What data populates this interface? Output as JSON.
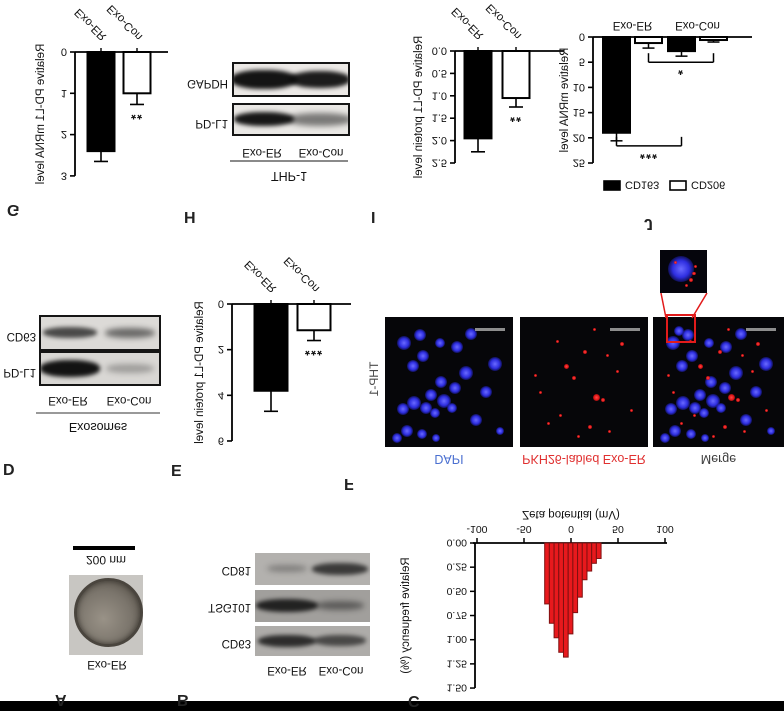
{
  "figure": {
    "letters": [
      "A",
      "B",
      "C",
      "D",
      "E",
      "F",
      "G",
      "H",
      "I",
      "J"
    ]
  },
  "colors": {
    "histogram_red": "#e8191d",
    "histogram_edge": "#7e1010",
    "dapi_blue_label": "#4a6fd0",
    "pkh26_red_label": "#e03030",
    "merge_label": "#3a3a3a",
    "scalebar_gray": "#8d8d8d",
    "callout_red": "#e21b1b"
  },
  "panel_a": {
    "sample_label": "Exo-ER",
    "scale_label": "200 nm"
  },
  "panel_b": {
    "lane_labels": [
      "Exo-ER",
      "Exo-Con"
    ],
    "rows": [
      {
        "label": "CD63",
        "bands": [
          [
            0.8,
            58,
            12
          ],
          [
            0.62,
            52,
            11
          ]
        ]
      },
      {
        "label": "TSG101",
        "bands": [
          [
            0.85,
            62,
            13
          ],
          [
            0.45,
            48,
            9
          ]
        ]
      },
      {
        "label": "CD81",
        "bands": [
          [
            0.3,
            40,
            7
          ],
          [
            0.72,
            56,
            12
          ]
        ]
      }
    ]
  },
  "panel_d": {
    "header": "Exosomes",
    "lane_labels": [
      "Exo-ER",
      "Exo-Con"
    ],
    "rows": [
      {
        "label": "PD-L1",
        "bands": [
          [
            0.97,
            60,
            17
          ],
          [
            0.28,
            48,
            9
          ]
        ]
      },
      {
        "label": "CD63",
        "bands": [
          [
            0.7,
            54,
            11
          ],
          [
            0.55,
            50,
            10
          ]
        ]
      }
    ]
  },
  "panel_h": {
    "header": "THP-1",
    "lane_labels": [
      "Exo-ER",
      "Exo-Con"
    ],
    "rows": [
      {
        "label": "PD-L1",
        "bands": [
          [
            0.95,
            60,
            14
          ],
          [
            0.5,
            64,
            13
          ]
        ]
      },
      {
        "label": "GAPDH",
        "bands": [
          [
            0.97,
            66,
            19
          ],
          [
            0.93,
            60,
            17
          ]
        ]
      }
    ]
  },
  "panel_f": {
    "row_label": "THP-1",
    "columns": [
      {
        "label": "DAPI",
        "color": "#4a6fd0"
      },
      {
        "label": "PKH26-labled Exo-ER",
        "color": "#e03030"
      },
      {
        "label": "Merge",
        "color": "#3a3a3a"
      }
    ],
    "cells": [
      [
        9,
        7,
        5
      ],
      [
        17,
        12,
        6
      ],
      [
        29,
        10,
        5
      ],
      [
        40,
        7,
        4
      ],
      [
        90,
        12,
        4
      ],
      [
        71,
        21,
        6
      ],
      [
        14,
        29,
        6
      ],
      [
        23,
        34,
        7
      ],
      [
        32,
        30,
        6
      ],
      [
        39,
        26,
        5
      ],
      [
        36,
        40,
        6
      ],
      [
        46,
        35,
        7
      ],
      [
        52,
        30,
        5
      ],
      [
        79,
        42,
        6
      ],
      [
        44,
        50,
        6
      ],
      [
        55,
        45,
        6
      ],
      [
        63,
        57,
        7
      ],
      [
        22,
        62,
        6
      ],
      [
        30,
        70,
        6
      ],
      [
        15,
        80,
        7
      ],
      [
        27,
        86,
        6
      ],
      [
        43,
        80,
        5
      ],
      [
        56,
        77,
        6
      ],
      [
        86,
        64,
        7
      ],
      [
        67,
        87,
        6
      ]
    ],
    "red_dots": [
      [
        55,
        15,
        2
      ],
      [
        70,
        12,
        1.5
      ],
      [
        32,
        24,
        1.5
      ],
      [
        60,
        38,
        3.5
      ],
      [
        65,
        36,
        2
      ],
      [
        42,
        53,
        2
      ],
      [
        36,
        62,
        2.5
      ],
      [
        76,
        58,
        1.5
      ],
      [
        51,
        73,
        2
      ],
      [
        29,
        81,
        1.5
      ],
      [
        80,
        79,
        2
      ],
      [
        16,
        42,
        1.5
      ],
      [
        87,
        28,
        1.5
      ],
      [
        46,
        8,
        1.5
      ],
      [
        22,
        18,
        1.5
      ],
      [
        68,
        70,
        1.5
      ],
      [
        12,
        55,
        1.5
      ],
      [
        58,
        90,
        1.5
      ]
    ],
    "merge_extra_cell": [
      20,
      89,
      5
    ],
    "inset_cell": [
      45,
      55,
      13
    ],
    "inset_dots": [
      [
        66,
        30,
        2
      ],
      [
        72,
        46,
        1.7
      ],
      [
        57,
        18,
        1.5
      ],
      [
        34,
        72,
        1.5
      ],
      [
        75,
        62,
        1.5
      ]
    ]
  },
  "chart_data": [
    {
      "id": "C",
      "type": "histogram",
      "xlabel": "Zeta potential (mV)",
      "ylabel": "Relative frequency (%)",
      "xticks": [
        -100,
        -50,
        0,
        50,
        100
      ],
      "yticks": [
        "0.00",
        "0.25",
        "0.50",
        "0.75",
        "1.00",
        "1.25",
        "1.50"
      ],
      "xlim": [
        -100,
        100
      ],
      "ylim": [
        0,
        1.5
      ],
      "bin_start": -28,
      "bin_width": 5,
      "values": [
        0.63,
        0.83,
        0.98,
        1.13,
        1.18,
        0.94,
        0.72,
        0.56,
        0.38,
        0.29,
        0.21,
        0.16
      ]
    },
    {
      "id": "E",
      "type": "bar",
      "ylabel": "Relative PD-L1 protein level",
      "yticks": [
        "0",
        "2",
        "4",
        "6"
      ],
      "ylim": [
        0,
        6
      ],
      "categories": [
        "Exo-ER",
        "Exo-Con"
      ],
      "values": [
        3.8,
        1.15
      ],
      "errors": [
        0.9,
        0.45
      ],
      "fills": [
        "black",
        "white"
      ],
      "sig": [
        null,
        "***"
      ]
    },
    {
      "id": "G",
      "type": "bar",
      "ylabel": "Relative PD-L1 mRNA level",
      "yticks": [
        "0",
        "1",
        "2",
        "3"
      ],
      "ylim": [
        0,
        3
      ],
      "categories": [
        "Exo-ER",
        "Exo-Con"
      ],
      "values": [
        2.4,
        1.0
      ],
      "errors": [
        0.25,
        0.27
      ],
      "fills": [
        "black",
        "white"
      ],
      "sig": [
        null,
        "**"
      ]
    },
    {
      "id": "I",
      "type": "bar",
      "ylabel": "Relative PD-L1 protein level",
      "yticks": [
        "0.0",
        "0.5",
        "1.0",
        "1.5",
        "2.0",
        "2.5"
      ],
      "ylim": [
        0,
        2.5
      ],
      "categories": [
        "Exo-ER",
        "Exo-Con"
      ],
      "values": [
        1.95,
        1.05
      ],
      "errors": [
        0.3,
        0.2
      ],
      "fills": [
        "black",
        "white"
      ],
      "sig": [
        null,
        "**"
      ]
    },
    {
      "id": "J",
      "type": "grouped_bar",
      "ylabel": "Relative mRNA level",
      "yticks": [
        "0",
        "5",
        "10",
        "15",
        "20",
        "25"
      ],
      "ylim": [
        0,
        25
      ],
      "groups": [
        "Exo-ER",
        "Exo-Con"
      ],
      "series": [
        {
          "name": "CD163",
          "fill": "black",
          "values": [
            19,
            2.8
          ],
          "errors": [
            1.6,
            1.0
          ]
        },
        {
          "name": "CD206",
          "fill": "white",
          "values": [
            1.2,
            0.6
          ],
          "errors": [
            1.0,
            0.4
          ]
        }
      ],
      "brackets": [
        {
          "label": "*",
          "y": 5,
          "from": [
            0,
            1
          ],
          "to": [
            1,
            1
          ]
        },
        {
          "label": "***",
          "y": 21.6,
          "from": [
            0,
            0
          ],
          "to": [
            1,
            0
          ]
        }
      ],
      "legend_position": "top"
    }
  ]
}
